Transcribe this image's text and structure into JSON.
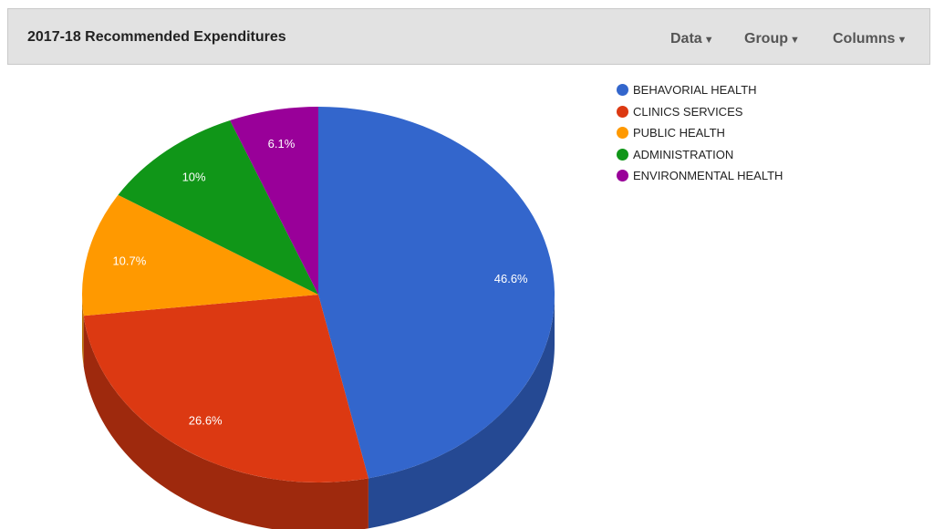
{
  "header": {
    "title": "2017-18 Recommended Expenditures",
    "menus": [
      {
        "label": "Data"
      },
      {
        "label": "Group"
      },
      {
        "label": "Columns"
      }
    ]
  },
  "chart_data": {
    "type": "pie",
    "title": "",
    "labels": [
      "BEHAVORIAL HEALTH",
      "CLINICS SERVICES",
      "PUBLIC HEALTH",
      "ADMINISTRATION",
      "ENVIRONMENTAL HEALTH"
    ],
    "values": [
      46.6,
      26.6,
      10.7,
      10.0,
      6.1
    ],
    "value_labels": [
      "46.6%",
      "26.6%",
      "10.7%",
      "10%",
      "6.1%"
    ],
    "colors": [
      "#3366cc",
      "#dc3912",
      "#ff9900",
      "#109618",
      "#990099"
    ],
    "legend": "right",
    "style": "3d"
  }
}
